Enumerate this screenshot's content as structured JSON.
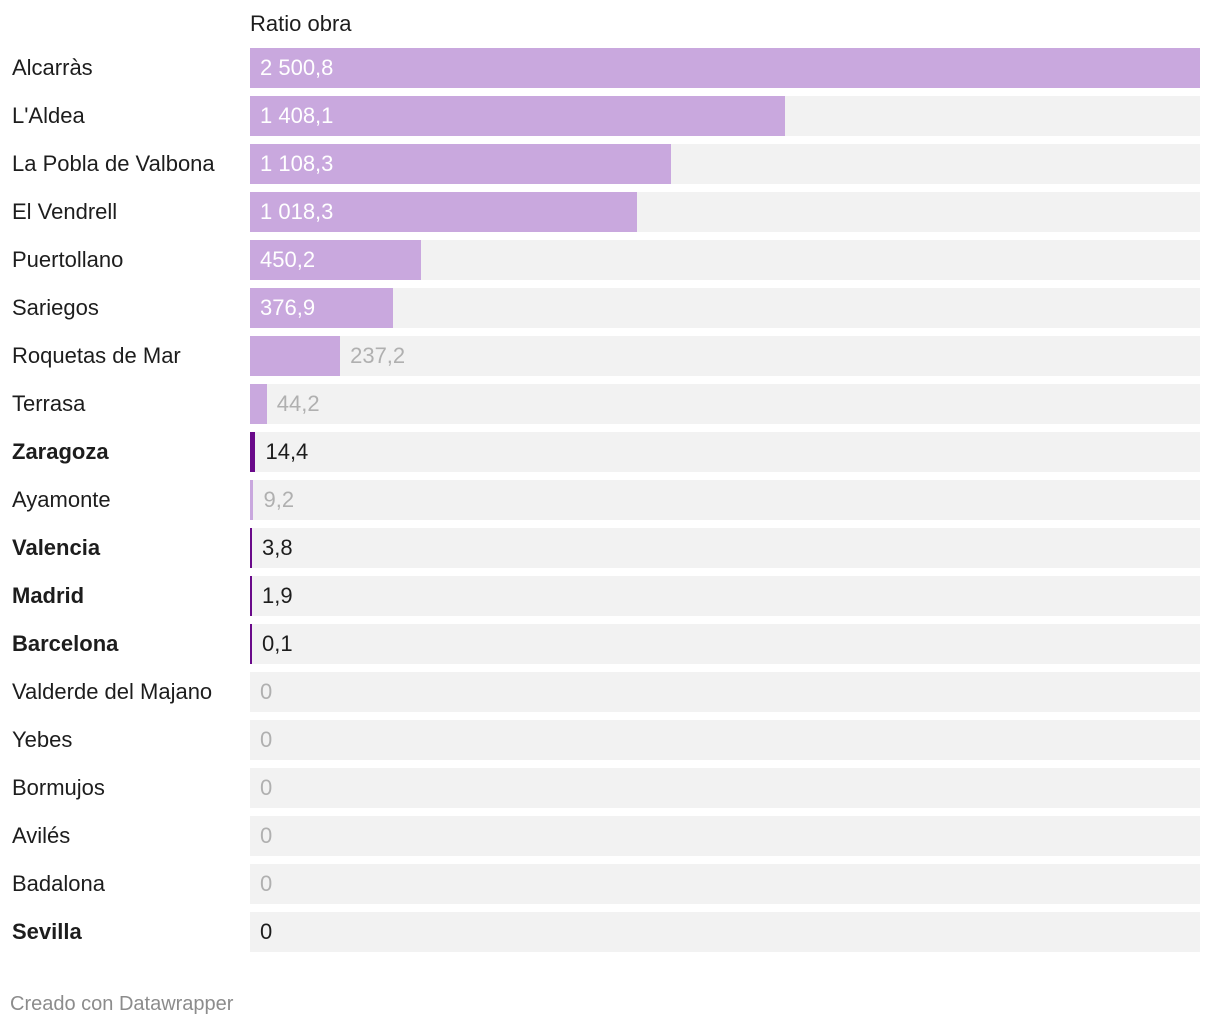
{
  "chart_data": {
    "type": "bar",
    "orientation": "horizontal",
    "column_title": "Ratio obra",
    "categories": [
      "Alcarràs",
      "L'Aldea",
      "La Pobla de Valbona",
      "El Vendrell",
      "Puertollano",
      "Sariegos",
      "Roquetas de Mar",
      "Terrasa",
      "Zaragoza",
      "Ayamonte",
      "Valencia",
      "Madrid",
      "Barcelona",
      "Valderde del Majano",
      "Yebes",
      "Bormujos",
      "Avilés",
      "Badalona",
      "Sevilla"
    ],
    "values": [
      2500.8,
      1408.1,
      1108.3,
      1018.3,
      450.2,
      376.9,
      237.2,
      44.2,
      14.4,
      9.2,
      3.8,
      1.9,
      0.1,
      0,
      0,
      0,
      0,
      0,
      0
    ],
    "value_labels": [
      "2 500,8",
      "1 408,1",
      "1 108,3",
      "1 018,3",
      "450,2",
      "376,9",
      "237,2",
      "44,2",
      "14,4",
      "9,2",
      "3,8",
      "1,9",
      "0,1",
      "0",
      "0",
      "0",
      "0",
      "0",
      "0"
    ],
    "highlighted": [
      false,
      false,
      false,
      false,
      false,
      false,
      false,
      false,
      true,
      false,
      true,
      true,
      true,
      false,
      false,
      false,
      false,
      false,
      true
    ],
    "xlim": [
      0,
      2500.8
    ],
    "colors": {
      "bar": "#c9a8de",
      "bar_highlight": "#6a0a8a",
      "track": "#f2f2f2",
      "label_inside": "#ffffff",
      "label_outside": "#b0b0b0",
      "label_highlight": "#1d1d1d"
    }
  },
  "footer": {
    "credit": "Creado con Datawrapper"
  }
}
